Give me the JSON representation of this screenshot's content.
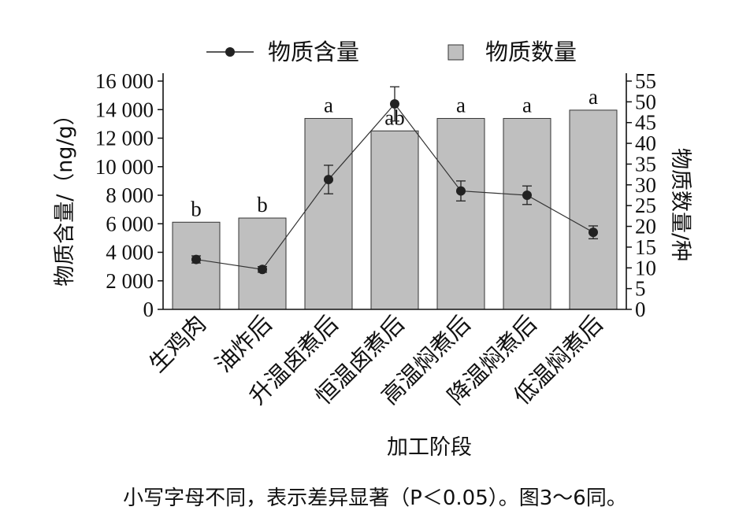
{
  "chart_data": {
    "type": "bar",
    "categories": [
      "生鸡肉",
      "油炸后",
      "升温卤煮后",
      "恒温卤煮后",
      "高温焖煮后",
      "降温焖煮后",
      "低温焖煮后"
    ],
    "series": [
      {
        "name": "物质数量",
        "kind": "bar",
        "axis": "right",
        "values": [
          21,
          22,
          46,
          43,
          46,
          46,
          48
        ],
        "significance": [
          "b",
          "b",
          "a",
          "ab",
          "a",
          "a",
          "a"
        ],
        "color": "#bfbfbf"
      },
      {
        "name": "物质含量",
        "kind": "line",
        "axis": "left",
        "values": [
          3500,
          2800,
          9100,
          14400,
          8300,
          8000,
          5400
        ],
        "errors": [
          250,
          200,
          1000,
          1200,
          700,
          650,
          450
        ],
        "color": "#222222"
      }
    ],
    "ylabel": "物质含量/（ng/g）",
    "ylabel_right": "物质数量/种",
    "xlabel": "加工阶段",
    "ylim": [
      0,
      16000
    ],
    "ylim_right": [
      0,
      55
    ],
    "yticks_left": [
      "0",
      "2 000",
      "4 000",
      "6 000",
      "8 000",
      "10 000",
      "12 000",
      "14 000",
      "16 000"
    ],
    "yticks_right": [
      "0",
      "5",
      "10",
      "15",
      "20",
      "25",
      "30",
      "35",
      "40",
      "45",
      "50",
      "55"
    ],
    "legend_position": "top"
  },
  "caption": "小写字母不同，表示差异显著（P＜0.05）。图3～6同。"
}
